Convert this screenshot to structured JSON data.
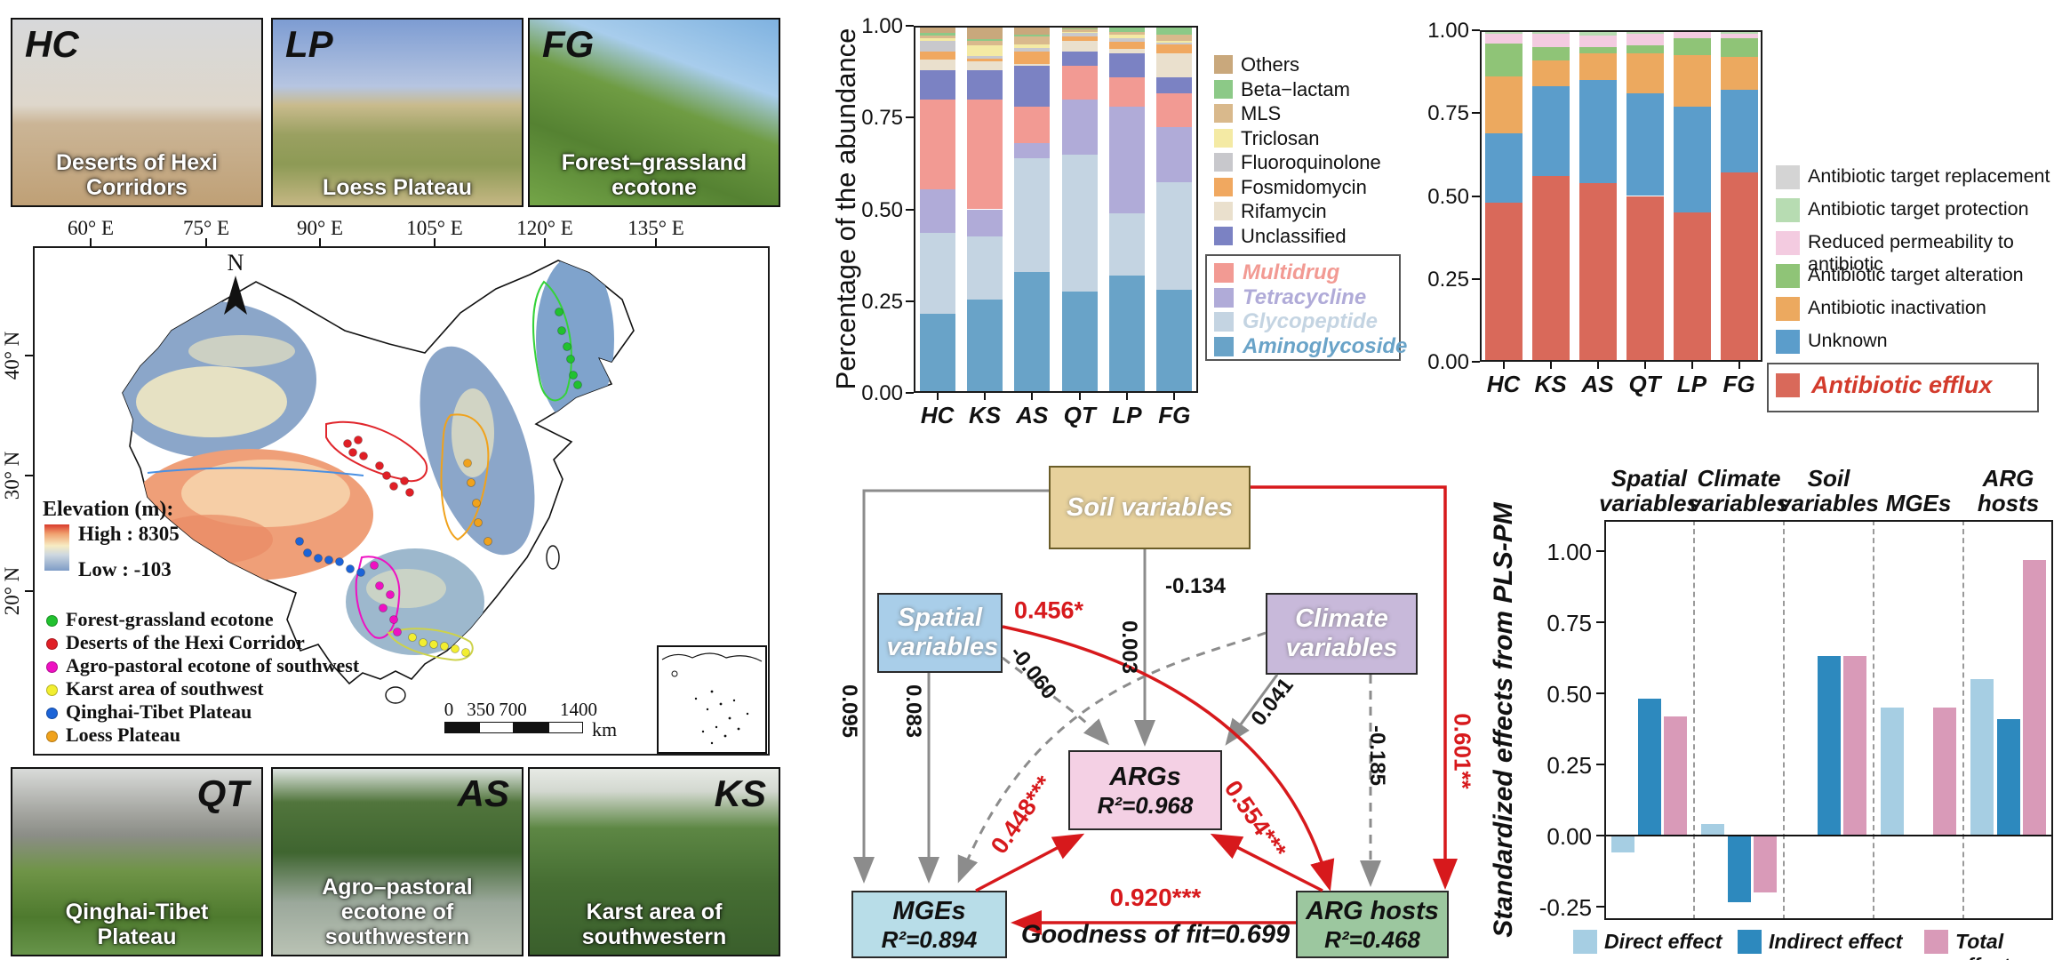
{
  "photos_top": [
    {
      "tag": "HC",
      "caption": "Deserts of Hexi Corridors"
    },
    {
      "tag": "LP",
      "caption": "Loess Plateau"
    },
    {
      "tag": "FG",
      "caption": "Forest–grassland ecotone"
    }
  ],
  "photos_bottom": [
    {
      "tag": "QT",
      "caption": "Qinghai-Tibet Plateau"
    },
    {
      "tag": "AS",
      "caption": "Agro–pastoral ecotone of southwestern"
    },
    {
      "tag": "KS",
      "caption": "Karst area of southwestern"
    }
  ],
  "map": {
    "lon_ticks": [
      "60° E",
      "75° E",
      "90° E",
      "105° E",
      "120° E",
      "135° E"
    ],
    "lat_ticks": [
      "40° N",
      "30° N",
      "20° N"
    ],
    "north": "N",
    "elevation_title": "Elevation (m):",
    "elevation_high": "High : 8305",
    "elevation_low": "Low : -103",
    "site_legend": [
      {
        "label": "Forest-grassland ecotone",
        "color": "#21c12f"
      },
      {
        "label": "Deserts of the Hexi Corridor",
        "color": "#e01f26"
      },
      {
        "label": "Agro-pastoral ecotone of southwest",
        "color": "#ee11c2"
      },
      {
        "label": "Karst area of southwest",
        "color": "#f2ee30"
      },
      {
        "label": "Qinghai-Tibet Plateau",
        "color": "#1c64d8"
      },
      {
        "label": "Loess Plateau",
        "color": "#f0a21c"
      }
    ],
    "scalebar": {
      "labels": [
        "0",
        "350",
        "700",
        "1400"
      ],
      "unit": "km"
    },
    "sites": [
      {
        "color": "#21c12f",
        "points": [
          [
            592,
            74
          ],
          [
            595,
            95
          ],
          [
            601,
            113
          ],
          [
            605,
            127
          ],
          [
            608,
            145
          ],
          [
            613,
            156
          ]
        ]
      },
      {
        "color": "#e01f26",
        "points": [
          [
            354,
            222
          ],
          [
            366,
            218
          ],
          [
            360,
            232
          ],
          [
            372,
            236
          ],
          [
            390,
            247
          ],
          [
            398,
            258
          ],
          [
            406,
            270
          ],
          [
            418,
            264
          ],
          [
            424,
            277
          ]
        ]
      },
      {
        "color": "#f0a21c",
        "points": [
          [
            489,
            244
          ],
          [
            493,
            266
          ],
          [
            499,
            289
          ],
          [
            501,
            311
          ],
          [
            512,
            332
          ]
        ]
      },
      {
        "color": "#1c64d8",
        "points": [
          [
            300,
            332
          ],
          [
            309,
            345
          ],
          [
            321,
            351
          ],
          [
            333,
            353
          ],
          [
            345,
            355
          ],
          [
            357,
            363
          ],
          [
            369,
            367
          ]
        ]
      },
      {
        "color": "#ee11c2",
        "points": [
          [
            384,
            359
          ],
          [
            390,
            382
          ],
          [
            402,
            392
          ],
          [
            394,
            407
          ],
          [
            406,
            420
          ],
          [
            410,
            434
          ]
        ]
      },
      {
        "color": "#f2ee30",
        "points": [
          [
            427,
            440
          ],
          [
            439,
            446
          ],
          [
            451,
            448
          ],
          [
            463,
            450
          ],
          [
            475,
            453
          ],
          [
            487,
            457
          ]
        ]
      }
    ]
  },
  "chart_data": [
    {
      "id": "arg_class_abundance",
      "type": "bar",
      "stacked": true,
      "title": "",
      "xlabel": "",
      "ylabel": "Percentage of the abundance",
      "categories": [
        "HC",
        "KS",
        "AS",
        "QT",
        "LP",
        "FG"
      ],
      "yticks": [
        "0.00",
        "0.25",
        "0.50",
        "0.75",
        "1.00"
      ],
      "ylim": [
        0,
        1
      ],
      "series": [
        {
          "name": "Aminoglycoside",
          "color": "#69a3c8",
          "values": [
            0.215,
            0.255,
            0.33,
            0.275,
            0.32,
            0.28
          ]
        },
        {
          "name": "Glycopeptide",
          "color": "#c4d4e2",
          "values": [
            0.22,
            0.17,
            0.31,
            0.375,
            0.17,
            0.295
          ]
        },
        {
          "name": "Tetracycline",
          "color": "#b0abd8",
          "values": [
            0.12,
            0.075,
            0.04,
            0.15,
            0.29,
            0.15
          ]
        },
        {
          "name": "Multidrug",
          "color": "#f29a93",
          "values": [
            0.245,
            0.3,
            0.1,
            0.09,
            0.08,
            0.09
          ]
        },
        {
          "name": "Unclassified",
          "color": "#7b82c3",
          "values": [
            0.08,
            0.08,
            0.11,
            0.04,
            0.065,
            0.045
          ]
        },
        {
          "name": "Rifamycin",
          "color": "#eae0cd",
          "values": [
            0.028,
            0.022,
            0.005,
            0.03,
            0.012,
            0.065
          ]
        },
        {
          "name": "Fosmidomycin",
          "color": "#f0a860",
          "values": [
            0.022,
            0.008,
            0.035,
            0.012,
            0.02,
            0.025
          ]
        },
        {
          "name": "Fluoroquinolone",
          "color": "#c8c8cc",
          "values": [
            0.03,
            0.008,
            0.01,
            0.008,
            0.008,
            0.005
          ]
        },
        {
          "name": "Triclosan",
          "color": "#f4eaa4",
          "values": [
            0.006,
            0.028,
            0.01,
            0.003,
            0.01,
            0.005
          ]
        },
        {
          "name": "MLS",
          "color": "#d9b98c",
          "values": [
            0.008,
            0.012,
            0.02,
            0.007,
            0.008,
            0.015
          ]
        },
        {
          "name": "Beta−lactam",
          "color": "#8cc987",
          "values": [
            0.006,
            0.006,
            0.005,
            0.003,
            0.012,
            0.02
          ]
        },
        {
          "name": "Others",
          "color": "#c9a87c",
          "values": [
            0.02,
            0.036,
            0.025,
            0.007,
            0.005,
            0.005
          ]
        }
      ],
      "legend_plain": [
        "Others",
        "Beta−lactam",
        "MLS",
        "Triclosan",
        "Fluoroquinolone",
        "Fosmidomycin",
        "Rifamycin",
        "Unclassified"
      ],
      "legend_boxed": [
        "Multidrug",
        "Tetracycline",
        "Glycopeptide",
        "Aminoglycoside"
      ]
    },
    {
      "id": "resistance_mechanisms",
      "type": "bar",
      "stacked": true,
      "title": "",
      "xlabel": "",
      "ylabel": "",
      "categories": [
        "HC",
        "KS",
        "AS",
        "QT",
        "LP",
        "FG"
      ],
      "yticks": [
        "0.00",
        "0.25",
        "0.50",
        "0.75",
        "1.00"
      ],
      "ylim": [
        0,
        1
      ],
      "series": [
        {
          "name": "Antibiotic efflux",
          "color": "#d9695a",
          "values": [
            0.48,
            0.56,
            0.54,
            0.5,
            0.45,
            0.57
          ]
        },
        {
          "name": "Unknown",
          "color": "#5b9dcb",
          "values": [
            0.21,
            0.27,
            0.31,
            0.31,
            0.32,
            0.25
          ]
        },
        {
          "name": "Antibiotic inactivation",
          "color": "#eca95f",
          "values": [
            0.17,
            0.08,
            0.08,
            0.12,
            0.155,
            0.1
          ]
        },
        {
          "name": "Antibiotic target alteration",
          "color": "#8fc477",
          "values": [
            0.1,
            0.04,
            0.02,
            0.025,
            0.05,
            0.055
          ]
        },
        {
          "name": "Reduced permeability to antibiotic",
          "color": "#f3cbe0",
          "values": [
            0.03,
            0.04,
            0.035,
            0.035,
            0.02,
            0.015
          ]
        },
        {
          "name": "Antibiotic target protection",
          "color": "#b7dcb2",
          "values": [
            0.005,
            0.005,
            0.01,
            0.005,
            0.003,
            0.007
          ]
        },
        {
          "name": "Antibiotic target replacement",
          "color": "#d4d4d4",
          "values": [
            0.005,
            0.005,
            0.005,
            0.005,
            0.002,
            0.003
          ]
        }
      ],
      "legend_plain": [
        "Antibiotic target replacement",
        "Antibiotic target protection",
        "Reduced permeability to antibiotic",
        "Antibiotic target alteration",
        "Antibiotic inactivation",
        "Unknown"
      ],
      "legend_boxed": [
        "Antibiotic efflux"
      ]
    },
    {
      "id": "plspm_effects",
      "type": "grouped_bar",
      "title": "",
      "xlabel": "",
      "ylabel": "Standardized effects from PLS-PM",
      "groups": [
        "Spatial variables",
        "Climate variables",
        "Soil variables",
        "MGEs",
        "ARG hosts"
      ],
      "yticks": [
        "-0.25",
        "0.00",
        "0.25",
        "0.50",
        "0.75",
        "1.00"
      ],
      "ylim": [
        -0.25,
        1.0
      ],
      "series": [
        {
          "name": "Direct effect",
          "color": "#a6cee3",
          "values": [
            -0.06,
            0.04,
            0.003,
            0.45,
            0.55
          ]
        },
        {
          "name": "Indirect effect",
          "color": "#2d89be",
          "values": [
            0.48,
            -0.235,
            0.63,
            null,
            0.41
          ]
        },
        {
          "name": "Total effect",
          "color": "#d99ab8",
          "values": [
            0.42,
            -0.2,
            0.63,
            0.45,
            0.97
          ]
        }
      ]
    }
  ],
  "plspm": {
    "boxes": {
      "soil": {
        "label": "Soil variables"
      },
      "spatial": {
        "label": "Spatial variables"
      },
      "climate": {
        "label": "Climate variables"
      },
      "args": {
        "label": "ARGs",
        "r2": "R²=0.968"
      },
      "mges": {
        "label": "MGEs",
        "r2": "R²=0.894"
      },
      "hosts": {
        "label": "ARG hosts",
        "r2": "R²=0.468"
      }
    },
    "coefficients": {
      "spatial_hosts": "0.456*",
      "soil_args": "0.003",
      "climate_mges": "-0.134",
      "climate_args": "0.041",
      "spatial_args": "-0.060",
      "soil_mges": "0.095",
      "spatial_mges": "0.083",
      "soil_hosts": "0.601**",
      "climate_hosts": "-0.185",
      "mges_args": "0.448***",
      "hosts_args": "0.554***",
      "hosts_mges": "0.920***"
    },
    "goodness": "Goodness of fit=0.699"
  }
}
